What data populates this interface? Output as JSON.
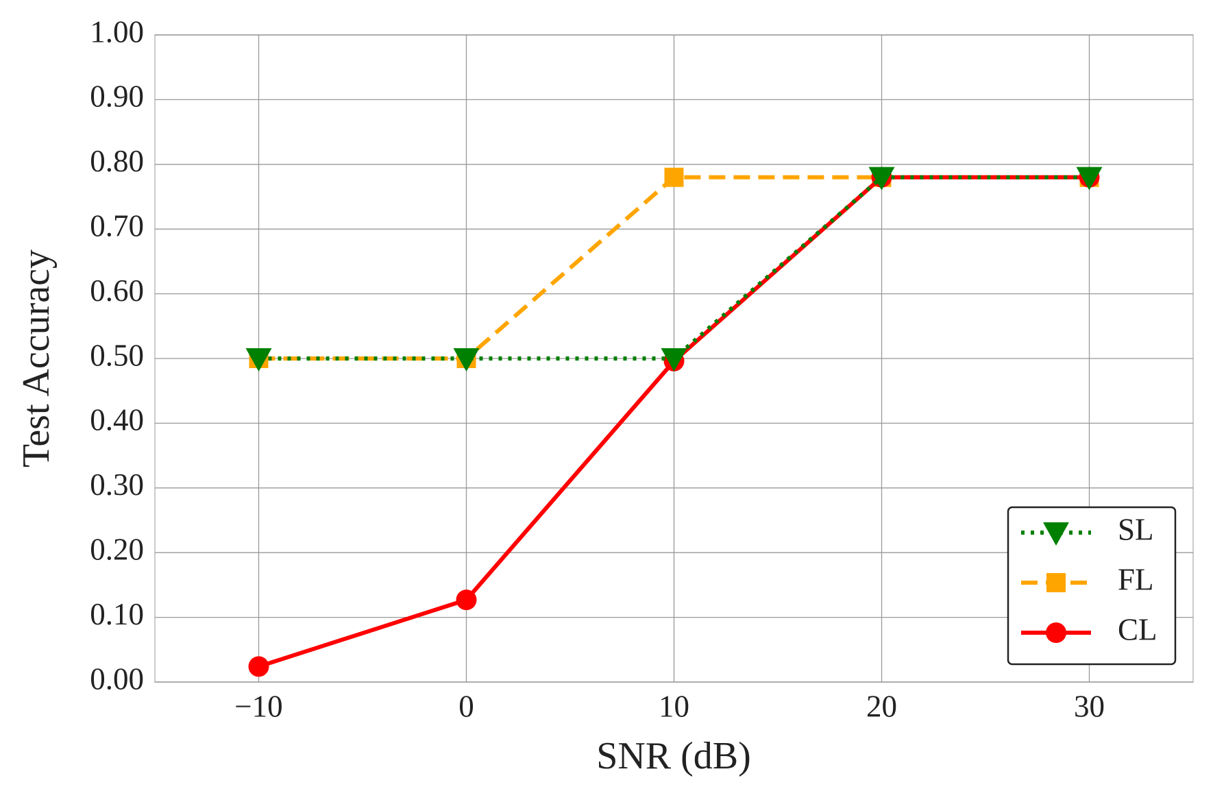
{
  "chart_data": {
    "type": "line",
    "xlabel": "SNR (dB)",
    "ylabel": "Test Accuracy",
    "x": [
      -10,
      0,
      10,
      20,
      30
    ],
    "series": [
      {
        "name": "SL",
        "color": "#008000",
        "marker": "triangle-down",
        "linestyle": "dotted",
        "values": [
          0.5,
          0.5,
          0.5,
          0.78,
          0.78
        ]
      },
      {
        "name": "FL",
        "color": "#ffa500",
        "marker": "square",
        "linestyle": "dashed",
        "values": [
          0.5,
          0.5,
          0.78,
          0.78,
          0.78
        ]
      },
      {
        "name": "CL",
        "color": "#ff0000",
        "marker": "circle",
        "linestyle": "solid",
        "values": [
          0.024,
          0.127,
          0.496,
          0.78,
          0.78
        ]
      }
    ],
    "xlim": [
      -15,
      35
    ],
    "xticks": [
      {
        "value": -10,
        "label": "−10"
      },
      0,
      10,
      20,
      30
    ],
    "ylim": [
      0,
      1
    ],
    "yticks": [
      {
        "value": 0,
        "label": "0.00"
      },
      {
        "value": 0.1,
        "label": "0.10"
      },
      {
        "value": 0.2,
        "label": "0.20"
      },
      {
        "value": 0.3,
        "label": "0.30"
      },
      {
        "value": 0.4,
        "label": "0.40"
      },
      {
        "value": 0.5,
        "label": "0.50"
      },
      {
        "value": 0.6,
        "label": "0.60"
      },
      {
        "value": 0.7,
        "label": "0.70"
      },
      {
        "value": 0.8,
        "label": "0.80"
      },
      {
        "value": 0.9,
        "label": "0.90"
      },
      {
        "value": 1,
        "label": "1.00"
      }
    ],
    "grid": true,
    "legend": "lower right"
  }
}
